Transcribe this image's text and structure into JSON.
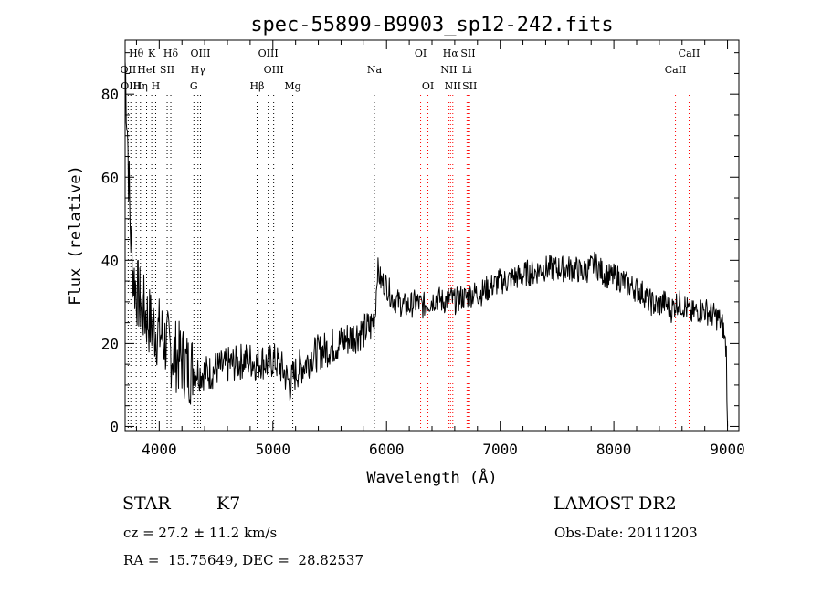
{
  "chart_data": {
    "type": "line",
    "title": "spec-55899-B9903_sp12-242.fits",
    "xlabel": "Wavelength (Å)",
    "ylabel": "Flux (relative)",
    "xlim": [
      3700,
      9100
    ],
    "ylim": [
      -1,
      93
    ],
    "xticks": [
      4000,
      5000,
      6000,
      7000,
      8000,
      9000
    ],
    "yticks": [
      0,
      20,
      40,
      60,
      80
    ],
    "grid": false,
    "series": [
      {
        "color": "#000000",
        "x": [
          3700,
          3720,
          3740,
          3760,
          3780,
          3800,
          3830,
          3860,
          3900,
          3940,
          3980,
          4020,
          4060,
          4100,
          4150,
          4200,
          4260,
          4300,
          4350,
          4400,
          4450,
          4500,
          4560,
          4620,
          4680,
          4740,
          4800,
          4860,
          4900,
          4950,
          5000,
          5050,
          5100,
          5150,
          5180,
          5230,
          5280,
          5350,
          5420,
          5500,
          5580,
          5650,
          5720,
          5800,
          5860,
          5900,
          5920,
          5950,
          6000,
          6050,
          6100,
          6150,
          6200,
          6260,
          6320,
          6380,
          6440,
          6500,
          6560,
          6600,
          6650,
          6700,
          6760,
          6820,
          6880,
          6940,
          7000,
          7060,
          7120,
          7180,
          7240,
          7300,
          7360,
          7420,
          7480,
          7540,
          7600,
          7660,
          7720,
          7780,
          7840,
          7900,
          7960,
          8020,
          8080,
          8140,
          8200,
          8260,
          8320,
          8380,
          8440,
          8500,
          8560,
          8620,
          8680,
          8740,
          8800,
          8860,
          8920,
          8960,
          8990,
          9000
        ],
        "y": [
          88,
          72,
          52,
          40,
          35,
          33,
          30,
          28,
          26,
          24,
          23,
          22,
          20,
          18,
          17,
          16,
          14,
          14,
          13,
          13,
          13,
          14,
          14,
          15,
          15,
          16,
          16,
          15,
          16,
          15,
          16,
          15,
          13,
          10,
          12,
          14,
          15,
          17,
          18,
          19,
          20,
          21,
          22,
          23,
          24,
          27,
          38,
          35,
          34,
          31,
          30,
          29,
          29,
          30,
          29,
          30,
          31,
          30,
          31,
          30,
          31,
          31,
          32,
          32,
          33,
          34,
          35,
          35,
          36,
          36,
          37,
          37,
          38,
          38,
          38,
          38,
          38,
          38,
          37,
          38,
          39,
          37,
          36,
          36,
          35,
          34,
          33,
          32,
          30,
          29,
          30,
          28,
          30,
          29,
          27,
          28,
          28,
          27,
          26,
          24,
          18,
          0
        ]
      }
    ],
    "spectral_lines": [
      {
        "label": "Hθ",
        "wavelength": 3798,
        "row": 0,
        "color": "#000000"
      },
      {
        "label": "K",
        "wavelength": 3934,
        "row": 0,
        "color": "#000000"
      },
      {
        "label": "Hδ",
        "wavelength": 4102,
        "row": 0,
        "color": "#000000"
      },
      {
        "label": "OIII",
        "wavelength": 4363,
        "row": 0,
        "color": "#000000"
      },
      {
        "label": "OIII",
        "wavelength": 4959,
        "row": 0,
        "color": "#000000"
      },
      {
        "label": "OI",
        "wavelength": 6300,
        "row": 0,
        "color": "#ff0000"
      },
      {
        "label": "Hα",
        "wavelength": 6563,
        "row": 0,
        "color": "#ff0000"
      },
      {
        "label": "SII",
        "wavelength": 6717,
        "row": 0,
        "color": "#ff0000"
      },
      {
        "label": "CaII",
        "wavelength": 8662,
        "row": 0,
        "color": "#ff0000"
      },
      {
        "label": "OII",
        "wavelength": 3727,
        "row": 1,
        "color": "#000000"
      },
      {
        "label": "HeI",
        "wavelength": 3889,
        "row": 1,
        "color": "#000000"
      },
      {
        "label": "SII",
        "wavelength": 4070,
        "row": 1,
        "color": "#000000"
      },
      {
        "label": "Hγ",
        "wavelength": 4341,
        "row": 1,
        "color": "#000000"
      },
      {
        "label": "OIII",
        "wavelength": 5007,
        "row": 1,
        "color": "#000000"
      },
      {
        "label": "Na",
        "wavelength": 5893,
        "row": 1,
        "color": "#000000"
      },
      {
        "label": "NII",
        "wavelength": 6548,
        "row": 1,
        "color": "#ff0000"
      },
      {
        "label": "Li",
        "wavelength": 6708,
        "row": 1,
        "color": "#ff0000"
      },
      {
        "label": "CaII",
        "wavelength": 8542,
        "row": 1,
        "color": "#ff0000"
      },
      {
        "label": "OIII",
        "wavelength": 3750,
        "row": 2,
        "color": "#000000"
      },
      {
        "label": "Hη",
        "wavelength": 3835,
        "row": 2,
        "color": "#000000"
      },
      {
        "label": "H",
        "wavelength": 3969,
        "row": 2,
        "color": "#000000"
      },
      {
        "label": "G",
        "wavelength": 4305,
        "row": 2,
        "color": "#000000"
      },
      {
        "label": "Hβ",
        "wavelength": 4861,
        "row": 2,
        "color": "#000000"
      },
      {
        "label": "Mg",
        "wavelength": 5175,
        "row": 2,
        "color": "#000000"
      },
      {
        "label": "OI",
        "wavelength": 6364,
        "row": 2,
        "color": "#ff0000"
      },
      {
        "label": "NII",
        "wavelength": 6583,
        "row": 2,
        "color": "#ff0000"
      },
      {
        "label": "SII",
        "wavelength": 6731,
        "row": 2,
        "color": "#ff0000"
      }
    ]
  },
  "info": {
    "object_class": "STAR",
    "subclass": "K7",
    "survey": "LAMOST DR2",
    "redshift": "cz = 27.2 ± 11.2 km/s",
    "obs_date": "Obs-Date: 20111203",
    "coords": "RA =  15.75649, DEC =  28.82537"
  }
}
